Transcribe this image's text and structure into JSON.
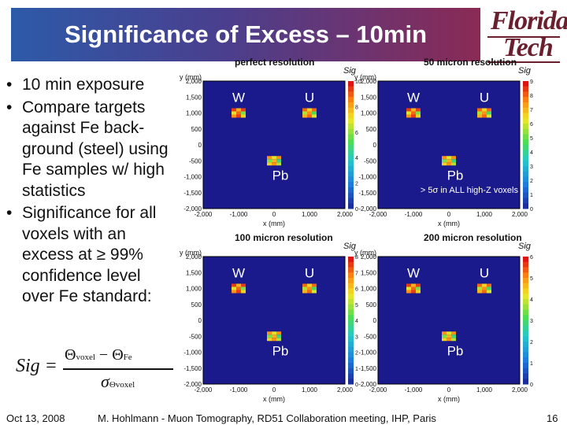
{
  "slide": {
    "title": "Significance of Excess – 10min",
    "logo_line1": "Florida",
    "logo_line2": "Tech",
    "bullets": [
      "10 min exposure",
      "Compare targets against Fe back-ground (steel) using Fe samples w/ high statistics",
      "Significance for all voxels with an excess at ≥ 99% confidence level over Fe standard:"
    ],
    "formula": {
      "lhs": "Sig =",
      "num_a": "Θ",
      "num_a_sub": "voxel",
      "num_minus": " − ",
      "num_b": "Θ",
      "num_b_sub": "Fe",
      "den": "σ",
      "den_sub": "Θvoxel"
    },
    "footer_left": "Oct 13, 2008",
    "footer_center": "M. Hohlmann - Muon Tomography, RD51 Collaboration meeting, IHP, Paris",
    "footer_page": "16"
  },
  "chart_data": [
    {
      "type": "heatmap",
      "title": "perfect resolution",
      "xlabel": "x (mm)",
      "ylabel": "y (mm)",
      "xlim": [
        -2000,
        2000
      ],
      "ylim": [
        -2000,
        2000
      ],
      "x_ticks": [
        -2000,
        -1000,
        0,
        1000,
        2000
      ],
      "y_ticks": [
        2000,
        1500,
        1000,
        500,
        0,
        -500,
        -1000,
        -1500,
        -2000
      ],
      "colorbar_label": "Sig",
      "colorbar_ticks": [
        10,
        8,
        6,
        4,
        2,
        0
      ],
      "colorbar_range": [
        0,
        10
      ],
      "regions": [
        {
          "label": "W",
          "x": -1000,
          "y": 1000
        },
        {
          "label": "U",
          "x": 1000,
          "y": 1000
        },
        {
          "label": "Pb",
          "x": 0,
          "y": -500
        }
      ],
      "annotation": ""
    },
    {
      "type": "heatmap",
      "title": "50 micron resolution",
      "xlabel": "x (mm)",
      "ylabel": "y (mm)",
      "xlim": [
        -2000,
        2000
      ],
      "ylim": [
        -2000,
        2000
      ],
      "x_ticks": [
        -2000,
        -1000,
        0,
        1000,
        2000
      ],
      "y_ticks": [
        2000,
        1500,
        1000,
        500,
        0,
        -500,
        -1000,
        -1500,
        -2000
      ],
      "colorbar_label": "Sig",
      "colorbar_ticks": [
        9,
        8,
        7,
        6,
        5,
        4,
        3,
        2,
        1,
        0
      ],
      "colorbar_range": [
        0,
        9
      ],
      "regions": [
        {
          "label": "W",
          "x": -1000,
          "y": 1000
        },
        {
          "label": "U",
          "x": 1000,
          "y": 1000
        },
        {
          "label": "Pb",
          "x": 0,
          "y": -500
        }
      ],
      "annotation": "> 5σ  in ALL high-Z voxels"
    },
    {
      "type": "heatmap",
      "title": "100 micron resolution",
      "xlabel": "x (mm)",
      "ylabel": "y (mm)",
      "xlim": [
        -2000,
        2000
      ],
      "ylim": [
        -2000,
        2000
      ],
      "x_ticks": [
        -2000,
        -1000,
        0,
        1000,
        2000
      ],
      "y_ticks": [
        2000,
        1500,
        1000,
        500,
        0,
        -500,
        -1000,
        -1500,
        -2000
      ],
      "colorbar_label": "Sig",
      "colorbar_ticks": [
        8,
        7,
        6,
        5,
        4,
        3,
        2,
        1,
        0
      ],
      "colorbar_range": [
        0,
        8
      ],
      "regions": [
        {
          "label": "W",
          "x": -1000,
          "y": 1000
        },
        {
          "label": "U",
          "x": 1000,
          "y": 1000
        },
        {
          "label": "Pb",
          "x": 0,
          "y": -500
        }
      ],
      "annotation": ""
    },
    {
      "type": "heatmap",
      "title": "200 micron resolution",
      "xlabel": "x (mm)",
      "ylabel": "y (mm)",
      "xlim": [
        -2000,
        2000
      ],
      "ylim": [
        -2000,
        2000
      ],
      "x_ticks": [
        -2000,
        -1000,
        0,
        1000,
        2000
      ],
      "y_ticks": [
        2000,
        1500,
        1000,
        500,
        0,
        -500,
        -1000,
        -1500,
        -2000
      ],
      "colorbar_label": "Sig",
      "colorbar_ticks": [
        6,
        5,
        4,
        3,
        2,
        1,
        0
      ],
      "colorbar_range": [
        0,
        6
      ],
      "regions": [
        {
          "label": "W",
          "x": -1000,
          "y": 1000
        },
        {
          "label": "U",
          "x": 1000,
          "y": 1000
        },
        {
          "label": "Pb",
          "x": 0,
          "y": -500
        }
      ],
      "annotation": ""
    }
  ],
  "colors": {
    "plot_background": "#1a1a8c",
    "title_gradient_start": "#2d5aa8",
    "title_gradient_end": "#8a2a55",
    "logo": "#6a1f2e",
    "region_label": "#ffffff",
    "annotation": "#ffffff"
  }
}
